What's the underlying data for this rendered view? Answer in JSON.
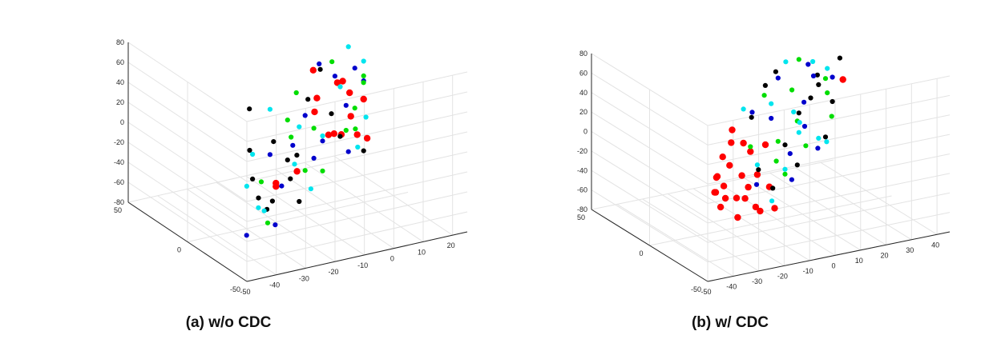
{
  "chart_data": [
    {
      "type": "scatter",
      "projection": "3d",
      "title": "(a) w/o CDC",
      "grid": true,
      "xlim": [
        -50,
        50
      ],
      "ylim": [
        -50,
        25
      ],
      "zlim": [
        -80,
        80
      ],
      "x_ticks": [
        "50",
        "0",
        "-50"
      ],
      "y_ticks": [
        "-50",
        "-40",
        "-30",
        "-20",
        "-10",
        "0",
        "10",
        "20"
      ],
      "z_ticks": [
        "80",
        "60",
        "40",
        "20",
        "0",
        "-20",
        "-40",
        "-60",
        "-80"
      ],
      "series": [
        {
          "color": "#ff0000",
          "points": [
            [
              -12,
              -5,
              8
            ],
            [
              -18,
              -20,
              -15
            ],
            [
              -5,
              -8,
              40
            ],
            [
              10,
              5,
              35
            ],
            [
              12,
              10,
              20
            ],
            [
              16,
              12,
              -8
            ],
            [
              20,
              18,
              2
            ],
            [
              18,
              15,
              -30
            ],
            [
              5,
              0,
              -10
            ],
            [
              -25,
              -30,
              -18
            ],
            [
              -20,
              -28,
              -20
            ],
            [
              -8,
              -10,
              30
            ],
            [
              8,
              -4,
              55
            ],
            [
              22,
              20,
              -40
            ],
            [
              14,
              8,
              -22
            ],
            [
              -2,
              2,
              48
            ]
          ]
        },
        {
          "color": "#000000",
          "points": [
            [
              -40,
              -45,
              40
            ],
            [
              -30,
              -40,
              0
            ],
            [
              -22,
              -30,
              -35
            ],
            [
              -10,
              -20,
              -10
            ],
            [
              0,
              -15,
              -40
            ],
            [
              10,
              -5,
              25
            ],
            [
              15,
              5,
              0
            ],
            [
              -5,
              -25,
              -60
            ],
            [
              25,
              20,
              -55
            ],
            [
              -15,
              -35,
              55
            ],
            [
              5,
              -10,
              -70
            ],
            [
              20,
              10,
              -30
            ],
            [
              -35,
              -40,
              -15
            ],
            [
              12,
              0,
              50
            ],
            [
              -18,
              -28,
              20
            ],
            [
              2,
              -12,
              -20
            ]
          ]
        },
        {
          "color": "#0000cc",
          "points": [
            [
              -20,
              -30,
              10
            ],
            [
              0,
              -10,
              20
            ],
            [
              10,
              0,
              -20
            ],
            [
              15,
              10,
              5
            ],
            [
              -5,
              -20,
              -40
            ],
            [
              20,
              15,
              35
            ],
            [
              -30,
              -42,
              -55
            ],
            [
              5,
              -5,
              -30
            ],
            [
              25,
              20,
              15
            ],
            [
              -12,
              -25,
              -70
            ],
            [
              8,
              -2,
              60
            ],
            [
              18,
              12,
              -45
            ],
            [
              -2,
              -15,
              -5
            ],
            [
              12,
              5,
              40
            ]
          ]
        },
        {
          "color": "#00dd00",
          "points": [
            [
              -25,
              -35,
              -10
            ],
            [
              -10,
              -20,
              30
            ],
            [
              5,
              -5,
              0
            ],
            [
              15,
              10,
              -20
            ],
            [
              25,
              20,
              20
            ],
            [
              -5,
              -15,
              50
            ],
            [
              10,
              0,
              -50
            ],
            [
              20,
              15,
              -5
            ],
            [
              -18,
              -30,
              -60
            ],
            [
              0,
              -10,
              -35
            ],
            [
              30,
              22,
              8
            ],
            [
              -8,
              -18,
              10
            ],
            [
              12,
              4,
              55
            ],
            [
              22,
              16,
              -28
            ]
          ]
        },
        {
          "color": "#00e5ee",
          "points": [
            [
              -45,
              -48,
              10
            ],
            [
              -35,
              -42,
              30
            ],
            [
              -20,
              -32,
              -45
            ],
            [
              0,
              -12,
              10
            ],
            [
              10,
              0,
              -15
            ],
            [
              20,
              18,
              40
            ],
            [
              28,
              22,
              -25
            ],
            [
              -15,
              -28,
              50
            ],
            [
              5,
              -6,
              -60
            ],
            [
              15,
              8,
              25
            ],
            [
              -30,
              -38,
              -30
            ],
            [
              25,
              18,
              -50
            ],
            [
              -6,
              -16,
              -20
            ],
            [
              18,
              12,
              60
            ]
          ]
        }
      ]
    },
    {
      "type": "scatter",
      "projection": "3d",
      "title": "(b) w/ CDC",
      "grid": true,
      "xlim": [
        -50,
        50
      ],
      "ylim": [
        -50,
        45
      ],
      "zlim": [
        -80,
        80
      ],
      "x_ticks": [
        "50",
        "0",
        "-50"
      ],
      "y_ticks": [
        "-50",
        "-40",
        "-30",
        "-20",
        "-10",
        "0",
        "10",
        "20",
        "30",
        "40"
      ],
      "z_ticks": [
        "80",
        "60",
        "40",
        "20",
        "0",
        "-20",
        "-40",
        "-60",
        "-80"
      ],
      "series": [
        {
          "color": "#ff0000",
          "points": [
            [
              -45,
              -45,
              5
            ],
            [
              -40,
              -42,
              15
            ],
            [
              -35,
              -40,
              -5
            ],
            [
              -30,
              -35,
              25
            ],
            [
              -28,
              -33,
              -20
            ],
            [
              -25,
              -30,
              10
            ],
            [
              -22,
              -28,
              30
            ],
            [
              -20,
              -25,
              -30
            ],
            [
              -18,
              -22,
              -10
            ],
            [
              -15,
              -20,
              20
            ],
            [
              -12,
              -18,
              -40
            ],
            [
              -10,
              -15,
              5
            ],
            [
              -8,
              -12,
              -55
            ],
            [
              -5,
              -10,
              -25
            ],
            [
              -3,
              -8,
              -65
            ],
            [
              -1,
              -5,
              0
            ],
            [
              0,
              -3,
              -45
            ],
            [
              2,
              0,
              -70
            ],
            [
              -14,
              -24,
              35
            ],
            [
              -26,
              -34,
              -30
            ],
            [
              -32,
              -38,
              8
            ],
            [
              -6,
              -14,
              -35
            ],
            [
              -20,
              -30,
              -15
            ],
            [
              -10,
              -20,
              -60
            ],
            [
              20,
              35,
              30
            ]
          ]
        },
        {
          "color": "#000000",
          "points": [
            [
              0,
              -10,
              30
            ],
            [
              10,
              0,
              50
            ],
            [
              15,
              10,
              -20
            ],
            [
              25,
              20,
              0
            ],
            [
              35,
              35,
              -40
            ],
            [
              20,
              25,
              40
            ],
            [
              5,
              -5,
              -30
            ],
            [
              30,
              30,
              20
            ],
            [
              40,
              40,
              -10
            ],
            [
              12,
              5,
              60
            ],
            [
              22,
              18,
              -50
            ],
            [
              28,
              26,
              10
            ],
            [
              8,
              2,
              -55
            ],
            [
              38,
              42,
              35
            ]
          ]
        },
        {
          "color": "#0000cc",
          "points": [
            [
              -5,
              -12,
              40
            ],
            [
              5,
              0,
              20
            ],
            [
              15,
              12,
              -30
            ],
            [
              25,
              22,
              10
            ],
            [
              35,
              32,
              -50
            ],
            [
              10,
              5,
              55
            ],
            [
              20,
              20,
              -10
            ],
            [
              30,
              28,
              30
            ],
            [
              0,
              -8,
              -40
            ],
            [
              40,
              40,
              15
            ],
            [
              18,
              14,
              -60
            ],
            [
              28,
              25,
              45
            ]
          ]
        },
        {
          "color": "#00dd00",
          "points": [
            [
              -10,
              -15,
              10
            ],
            [
              0,
              -5,
              50
            ],
            [
              10,
              5,
              -10
            ],
            [
              20,
              15,
              30
            ],
            [
              30,
              25,
              -40
            ],
            [
              40,
              38,
              0
            ],
            [
              15,
              10,
              -50
            ],
            [
              25,
              20,
              55
            ],
            [
              5,
              2,
              -25
            ],
            [
              35,
              35,
              20
            ],
            [
              45,
              42,
              -30
            ],
            [
              22,
              18,
              -5
            ]
          ]
        },
        {
          "color": "#00e5ee",
          "points": [
            [
              -15,
              -20,
              55
            ],
            [
              -5,
              -10,
              -15
            ],
            [
              5,
              0,
              35
            ],
            [
              15,
              10,
              -45
            ],
            [
              25,
              20,
              -20
            ],
            [
              35,
              30,
              40
            ],
            [
              45,
              40,
              -55
            ],
            [
              10,
              8,
              70
            ],
            [
              20,
              18,
              -5
            ],
            [
              30,
              30,
              -35
            ],
            [
              40,
              38,
              25
            ],
            [
              0,
              -2,
              -60
            ],
            [
              12,
              12,
              15
            ]
          ]
        }
      ]
    }
  ]
}
